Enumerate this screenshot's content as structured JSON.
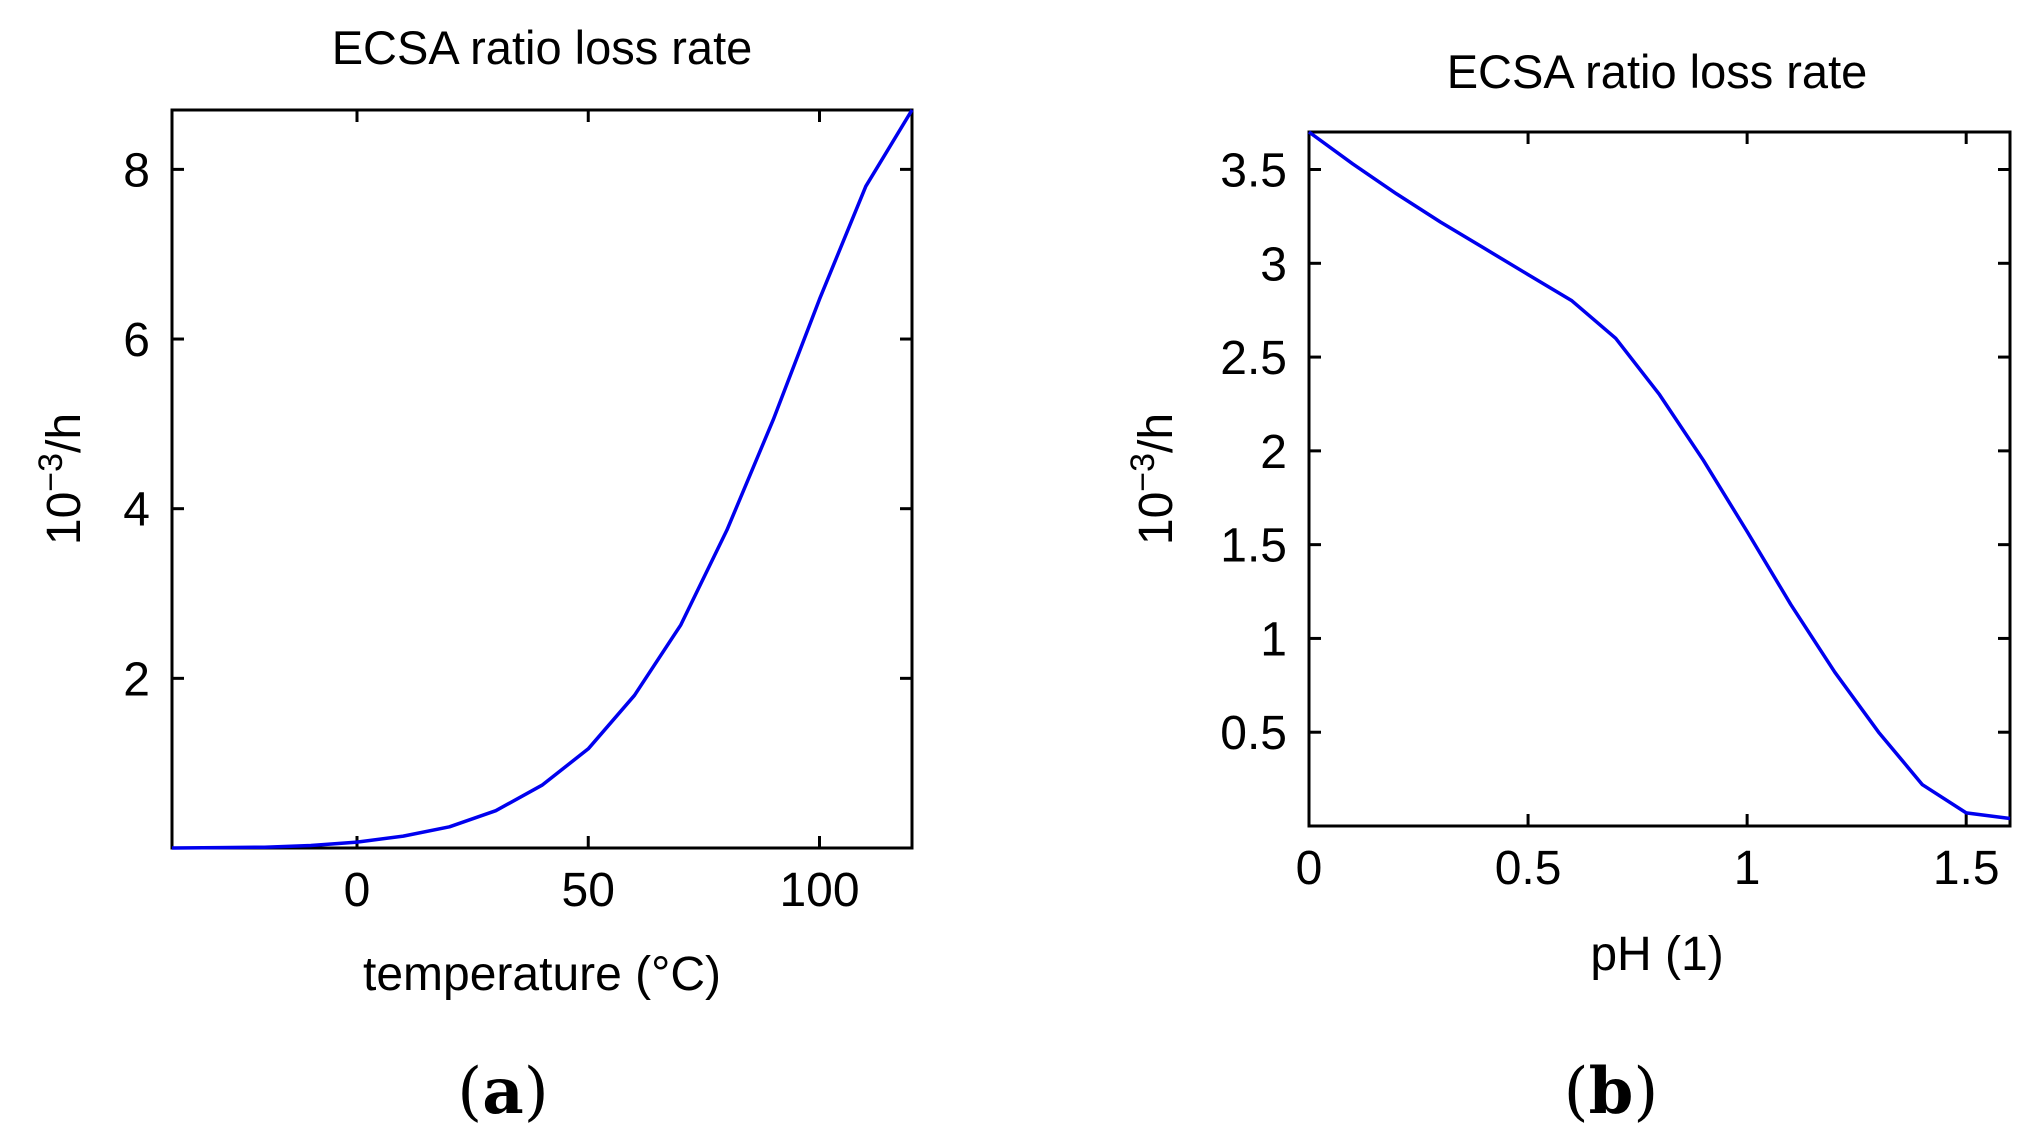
{
  "chart_data": [
    {
      "type": "line",
      "panel": "a",
      "title": "ECSA ratio loss rate",
      "xlabel": "temperature (°C)",
      "ylabel_base": "10",
      "ylabel_exp": "−3",
      "ylabel_unit": "/h",
      "xlim": [
        -40,
        120
      ],
      "ylim": [
        0,
        8.7
      ],
      "xticks": [
        0,
        50,
        100
      ],
      "xtick_labels": [
        "0",
        "50",
        "100"
      ],
      "yticks": [
        2,
        4,
        6,
        8
      ],
      "ytick_labels": [
        "2",
        "4",
        "6",
        "8"
      ],
      "color": "#0000ee",
      "series": [
        {
          "name": "loss rate",
          "x": [
            -40,
            -30,
            -20,
            -10,
            0,
            10,
            20,
            30,
            40,
            50,
            60,
            70,
            80,
            90,
            100,
            110,
            120
          ],
          "y": [
            0.0,
            0.005,
            0.01,
            0.03,
            0.07,
            0.14,
            0.25,
            0.44,
            0.74,
            1.17,
            1.8,
            2.63,
            3.75,
            5.05,
            6.47,
            7.8,
            8.7
          ]
        }
      ],
      "subcaption": "a"
    },
    {
      "type": "line",
      "panel": "b",
      "title": "ECSA ratio loss rate",
      "xlabel": "pH (1)",
      "ylabel_base": "10",
      "ylabel_exp": "−3",
      "ylabel_unit": "/h",
      "xlim": [
        0,
        1.6
      ],
      "ylim": [
        0,
        3.7
      ],
      "xticks": [
        0,
        0.5,
        1,
        1.5
      ],
      "xtick_labels": [
        "0",
        "0.5",
        "1",
        "1.5"
      ],
      "yticks": [
        0.5,
        1,
        1.5,
        2,
        2.5,
        3,
        3.5
      ],
      "ytick_labels": [
        "0.5",
        "1",
        "1.5",
        "2",
        "2.5",
        "3",
        "3.5"
      ],
      "color": "#0000ee",
      "series": [
        {
          "name": "loss rate",
          "x": [
            0,
            0.1,
            0.2,
            0.3,
            0.4,
            0.5,
            0.6,
            0.7,
            0.8,
            0.9,
            1.0,
            1.1,
            1.2,
            1.3,
            1.4,
            1.5,
            1.6
          ],
          "y": [
            3.7,
            3.53,
            3.37,
            3.22,
            3.08,
            2.94,
            2.8,
            2.6,
            2.3,
            1.95,
            1.57,
            1.18,
            0.82,
            0.5,
            0.22,
            0.07,
            0.04
          ]
        }
      ],
      "subcaption": "b"
    }
  ]
}
